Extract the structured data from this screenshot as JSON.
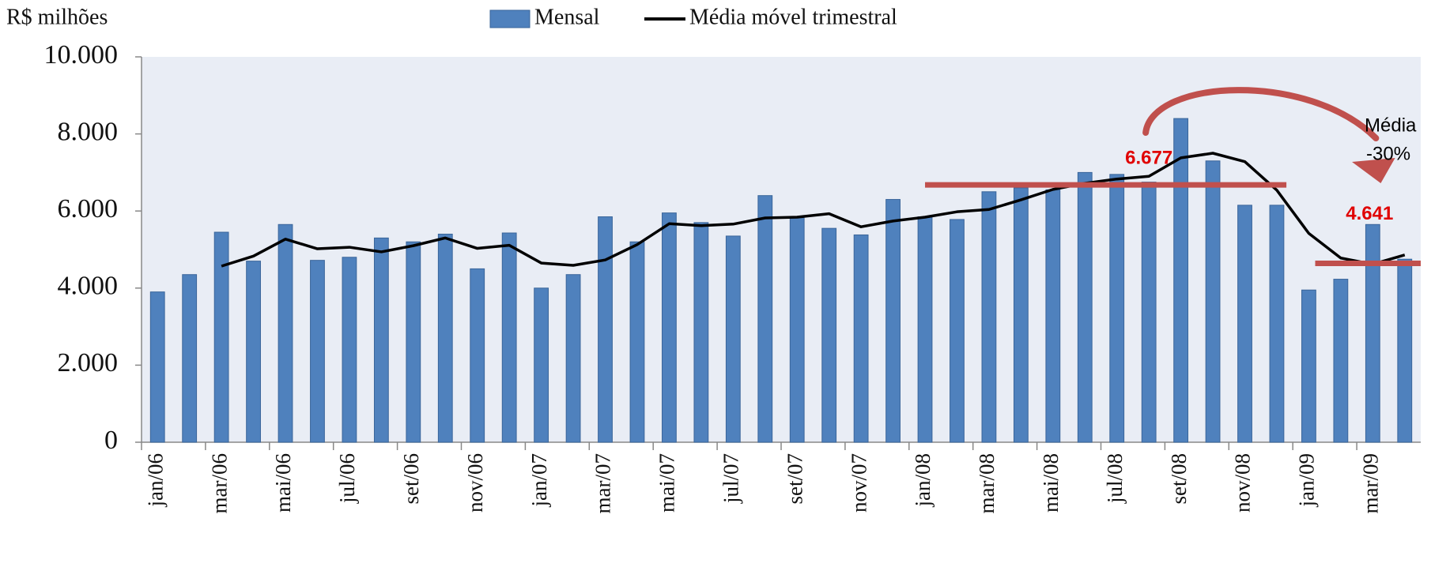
{
  "chart_data": {
    "type": "bar_line",
    "y_label": "R$ milhões",
    "categories": [
      "jan/06",
      null,
      "mar/06",
      null,
      "mai/06",
      null,
      "jul/06",
      null,
      "set/06",
      null,
      "nov/06",
      null,
      "jan/07",
      null,
      "mar/07",
      null,
      "mai/07",
      null,
      "jul/07",
      null,
      "set/07",
      null,
      "nov/07",
      null,
      "jan/08",
      null,
      "mar/08",
      null,
      "mai/08",
      null,
      "jul/08",
      null,
      "set/08",
      null,
      "nov/08",
      null,
      "jan/09",
      null,
      "mar/09",
      null
    ],
    "series": [
      {
        "name": "Mensal",
        "color": "#4f81bd",
        "values": [
          3900,
          4350,
          5450,
          4700,
          5650,
          4720,
          4800,
          5300,
          5200,
          5400,
          4500,
          5430,
          4000,
          4350,
          5850,
          5200,
          5950,
          5700,
          5350,
          6400,
          5850,
          5550,
          5380,
          6300,
          5850,
          5780,
          6500,
          6600,
          6550,
          7000,
          6950,
          6750,
          8400,
          7300,
          6150,
          6150,
          3950,
          4230,
          5650,
          4750
        ]
      },
      {
        "name": "Média móvel trimestral",
        "color": "#000000",
        "values": [
          null,
          null,
          4570,
          4830,
          5270,
          5020,
          5060,
          4940,
          5100,
          5300,
          5030,
          5110,
          4650,
          4590,
          4730,
          5130,
          5670,
          5620,
          5660,
          5820,
          5840,
          5930,
          5590,
          5740,
          5840,
          5980,
          6040,
          6290,
          6560,
          6720,
          6830,
          6900,
          7380,
          7500,
          7280,
          6540,
          5420,
          4780,
          4620,
          4860
        ]
      }
    ],
    "reference_lines": [
      {
        "value": 6677,
        "label": "6.677",
        "color": "#c0504d"
      },
      {
        "value": 4641,
        "label": "4.641",
        "color": "#c0504d"
      }
    ],
    "annotation": [
      "Média",
      "-30%"
    ],
    "ylim": [
      0,
      10000
    ],
    "yticks": [
      0,
      {
        "value": 2000,
        "label": "2.000"
      },
      {
        "value": 4000,
        "label": "4.000"
      },
      {
        "value": 6000,
        "label": "6.000"
      },
      {
        "value": 8000,
        "label": "8.000"
      },
      {
        "value": 10000,
        "label": "10.000"
      }
    ]
  }
}
